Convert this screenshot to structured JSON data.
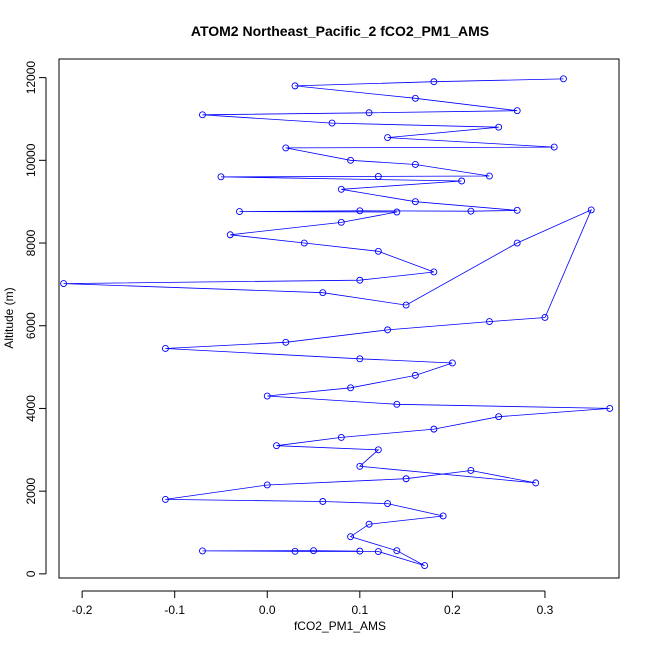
{
  "chart_data": {
    "type": "scatter",
    "title": "ATOM2 Northeast_Pacific_2 fCO2_PM1_AMS",
    "xlabel": "fCO2_PM1_AMS",
    "ylabel": "Altitude (m)",
    "xlim": [
      -0.225,
      0.38
    ],
    "ylim": [
      -100,
      12450
    ],
    "x_ticks": [
      -0.2,
      -0.1,
      0.0,
      0.1,
      0.2,
      0.3
    ],
    "x_tick_labels": [
      "-0.2",
      "-0.1",
      "0.0",
      "0.1",
      "0.2",
      "0.3"
    ],
    "y_ticks": [
      0,
      2000,
      4000,
      6000,
      8000,
      10000,
      12000
    ],
    "y_tick_labels": [
      "0",
      "2000",
      "4000",
      "6000",
      "8000",
      "10000",
      "12000"
    ],
    "color": "#0000ff",
    "marker": "open-circle",
    "connected": true,
    "series": [
      {
        "values": [
          [
            0.1,
            550
          ],
          [
            0.05,
            560
          ],
          [
            -0.07,
            555
          ],
          [
            0.03,
            545
          ],
          [
            0.12,
            540
          ],
          [
            0.17,
            200
          ],
          [
            0.14,
            560
          ],
          [
            0.09,
            900
          ],
          [
            0.11,
            1200
          ],
          [
            0.19,
            1400
          ],
          [
            0.13,
            1700
          ],
          [
            0.06,
            1750
          ],
          [
            -0.11,
            1800
          ],
          [
            0.0,
            2150
          ],
          [
            0.15,
            2300
          ],
          [
            0.22,
            2500
          ],
          [
            0.29,
            2200
          ],
          [
            0.1,
            2600
          ],
          [
            0.12,
            3000
          ],
          [
            0.01,
            3100
          ],
          [
            0.08,
            3300
          ],
          [
            0.18,
            3500
          ],
          [
            0.25,
            3800
          ],
          [
            0.37,
            4000
          ],
          [
            0.14,
            4100
          ],
          [
            0.0,
            4300
          ],
          [
            0.09,
            4500
          ],
          [
            0.16,
            4800
          ],
          [
            0.2,
            5100
          ],
          [
            0.1,
            5200
          ],
          [
            -0.11,
            5450
          ],
          [
            0.02,
            5600
          ],
          [
            0.13,
            5900
          ],
          [
            0.24,
            6100
          ],
          [
            0.3,
            6200
          ],
          [
            0.35,
            8800
          ],
          [
            0.27,
            8000
          ],
          [
            0.15,
            6500
          ],
          [
            0.06,
            6800
          ],
          [
            -0.22,
            7020
          ],
          [
            0.1,
            7100
          ],
          [
            0.18,
            7300
          ],
          [
            0.12,
            7800
          ],
          [
            0.04,
            8000
          ],
          [
            -0.04,
            8200
          ],
          [
            0.08,
            8500
          ],
          [
            0.14,
            8750
          ],
          [
            -0.03,
            8760
          ],
          [
            0.1,
            8780
          ],
          [
            0.22,
            8770
          ],
          [
            0.27,
            8790
          ],
          [
            0.16,
            9000
          ],
          [
            0.08,
            9300
          ],
          [
            0.21,
            9500
          ],
          [
            -0.05,
            9600
          ],
          [
            0.12,
            9610
          ],
          [
            0.24,
            9620
          ],
          [
            0.16,
            9900
          ],
          [
            0.09,
            10000
          ],
          [
            0.02,
            10300
          ],
          [
            0.31,
            10320
          ],
          [
            0.13,
            10550
          ],
          [
            0.25,
            10800
          ],
          [
            0.07,
            10900
          ],
          [
            -0.07,
            11100
          ],
          [
            0.11,
            11150
          ],
          [
            0.27,
            11200
          ],
          [
            0.16,
            11500
          ],
          [
            0.03,
            11800
          ],
          [
            0.18,
            11900
          ],
          [
            0.32,
            11970
          ]
        ]
      }
    ]
  }
}
